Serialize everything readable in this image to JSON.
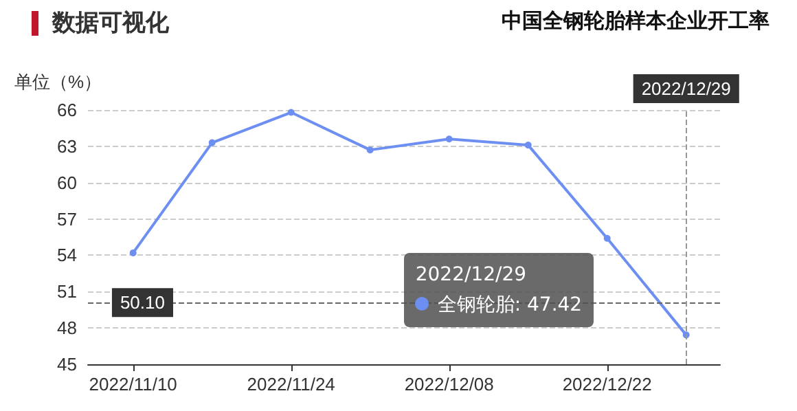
{
  "chart_data": {
    "type": "line",
    "title": "数据可视化",
    "subtitle": "中国全钢轮胎样本企业开工率",
    "ylabel": "单位（%）",
    "x": [
      "2022-11-10",
      "2022-11-17",
      "2022-11-24",
      "2022-12-01",
      "2022-12-08",
      "2022-12-15",
      "2022-12-22",
      "2022-12-29"
    ],
    "series": [
      {
        "color": "#6e8ff2",
        "values": [
          54.2,
          63.3,
          65.8,
          62.7,
          63.6,
          63.1,
          55.4,
          47.42
        ]
      }
    ],
    "xlim": [
      "2022-11-06",
      "2023-01-01"
    ],
    "xticks": [
      {
        "value": "2022-11-10",
        "label": "2022/11/10"
      },
      {
        "value": "2022-11-24",
        "label": "2022/11/24"
      },
      {
        "value": "2022-12-08",
        "label": "2022/12/08"
      },
      {
        "value": "2022-12-22",
        "label": "2022/12/22"
      }
    ],
    "ylim": [
      45,
      66
    ],
    "yticks": [
      45,
      48,
      51,
      54,
      57,
      60,
      63,
      66
    ],
    "grid": "y",
    "marker": "circle",
    "line_style": "solid",
    "ref_lines": [
      {
        "axis": "y",
        "value": 50.1,
        "label": "50.10",
        "color": "#666666",
        "line_style": "dashed"
      },
      {
        "axis": "x",
        "value": "2022-12-29",
        "label": "2022/12/29",
        "color": "#999999",
        "line_style": "dashed"
      }
    ],
    "annotations": [
      "2022/12/29",
      "全钢轮胎: 47.42"
    ]
  }
}
